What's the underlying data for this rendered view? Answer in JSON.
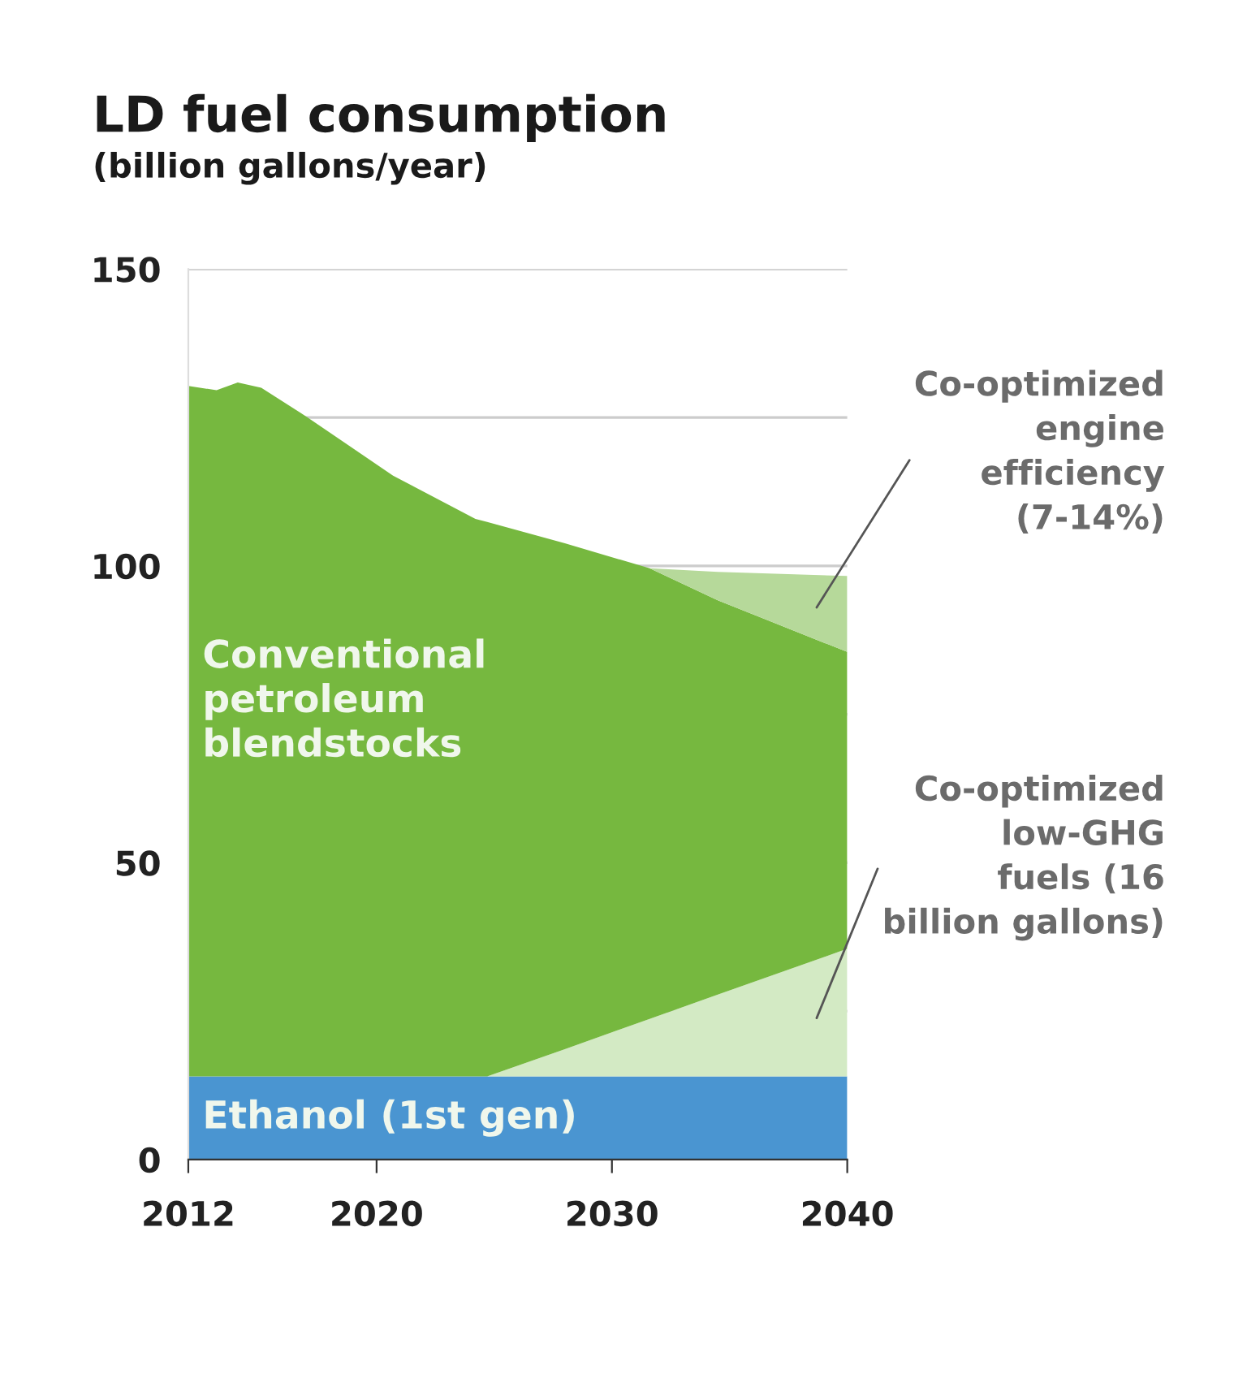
{
  "chart_data": {
    "type": "area",
    "stacked": true,
    "title": "LD fuel consumption",
    "subtitle": "(billion gallons/year)",
    "x": [
      2012,
      2013.2,
      2014.1,
      2015.1,
      2017,
      2018.7,
      2020.7,
      2024.2,
      2024.7,
      2028,
      2031.6,
      2034.5,
      2040
    ],
    "series": [
      {
        "name": "Ethanol (1st gen)",
        "color": "#4a95d1",
        "values": [
          14,
          14,
          14,
          14,
          14,
          14,
          14,
          14,
          14,
          14,
          14,
          14,
          14
        ]
      },
      {
        "name": "Co-optimized low-GHG fuels (16 billion gallons)",
        "color": "#d3eac4",
        "values": [
          0,
          0,
          0,
          0,
          0,
          0,
          0,
          0,
          0,
          4.6,
          9.7,
          13.8,
          21.5
        ]
      },
      {
        "name": "Conventional petroleum blendstocks",
        "color": "#76b83f",
        "values": [
          116.3,
          115.6,
          116.9,
          116,
          111.2,
          106.6,
          101.2,
          93.9,
          93.4,
          85.2,
          75.9,
          66.4,
          50
        ]
      },
      {
        "name": "Co-optimized engine efficiency (7-14%)",
        "color": "#b6d99a",
        "values": [
          0,
          0,
          0,
          0,
          0,
          0,
          0,
          0,
          0,
          0,
          0,
          4.8,
          12.8
        ]
      }
    ],
    "xlim": [
      2012,
      2040
    ],
    "xticks": [
      2012,
      2020,
      2030,
      2040
    ],
    "ylim": [
      0,
      150
    ],
    "yticks": [
      0,
      {
        "value": 25,
        "label": null
      },
      50,
      {
        "value": 75,
        "label": null
      },
      100,
      {
        "value": 125,
        "label": null
      },
      150
    ],
    "grid": "y",
    "legend": false
  }
}
